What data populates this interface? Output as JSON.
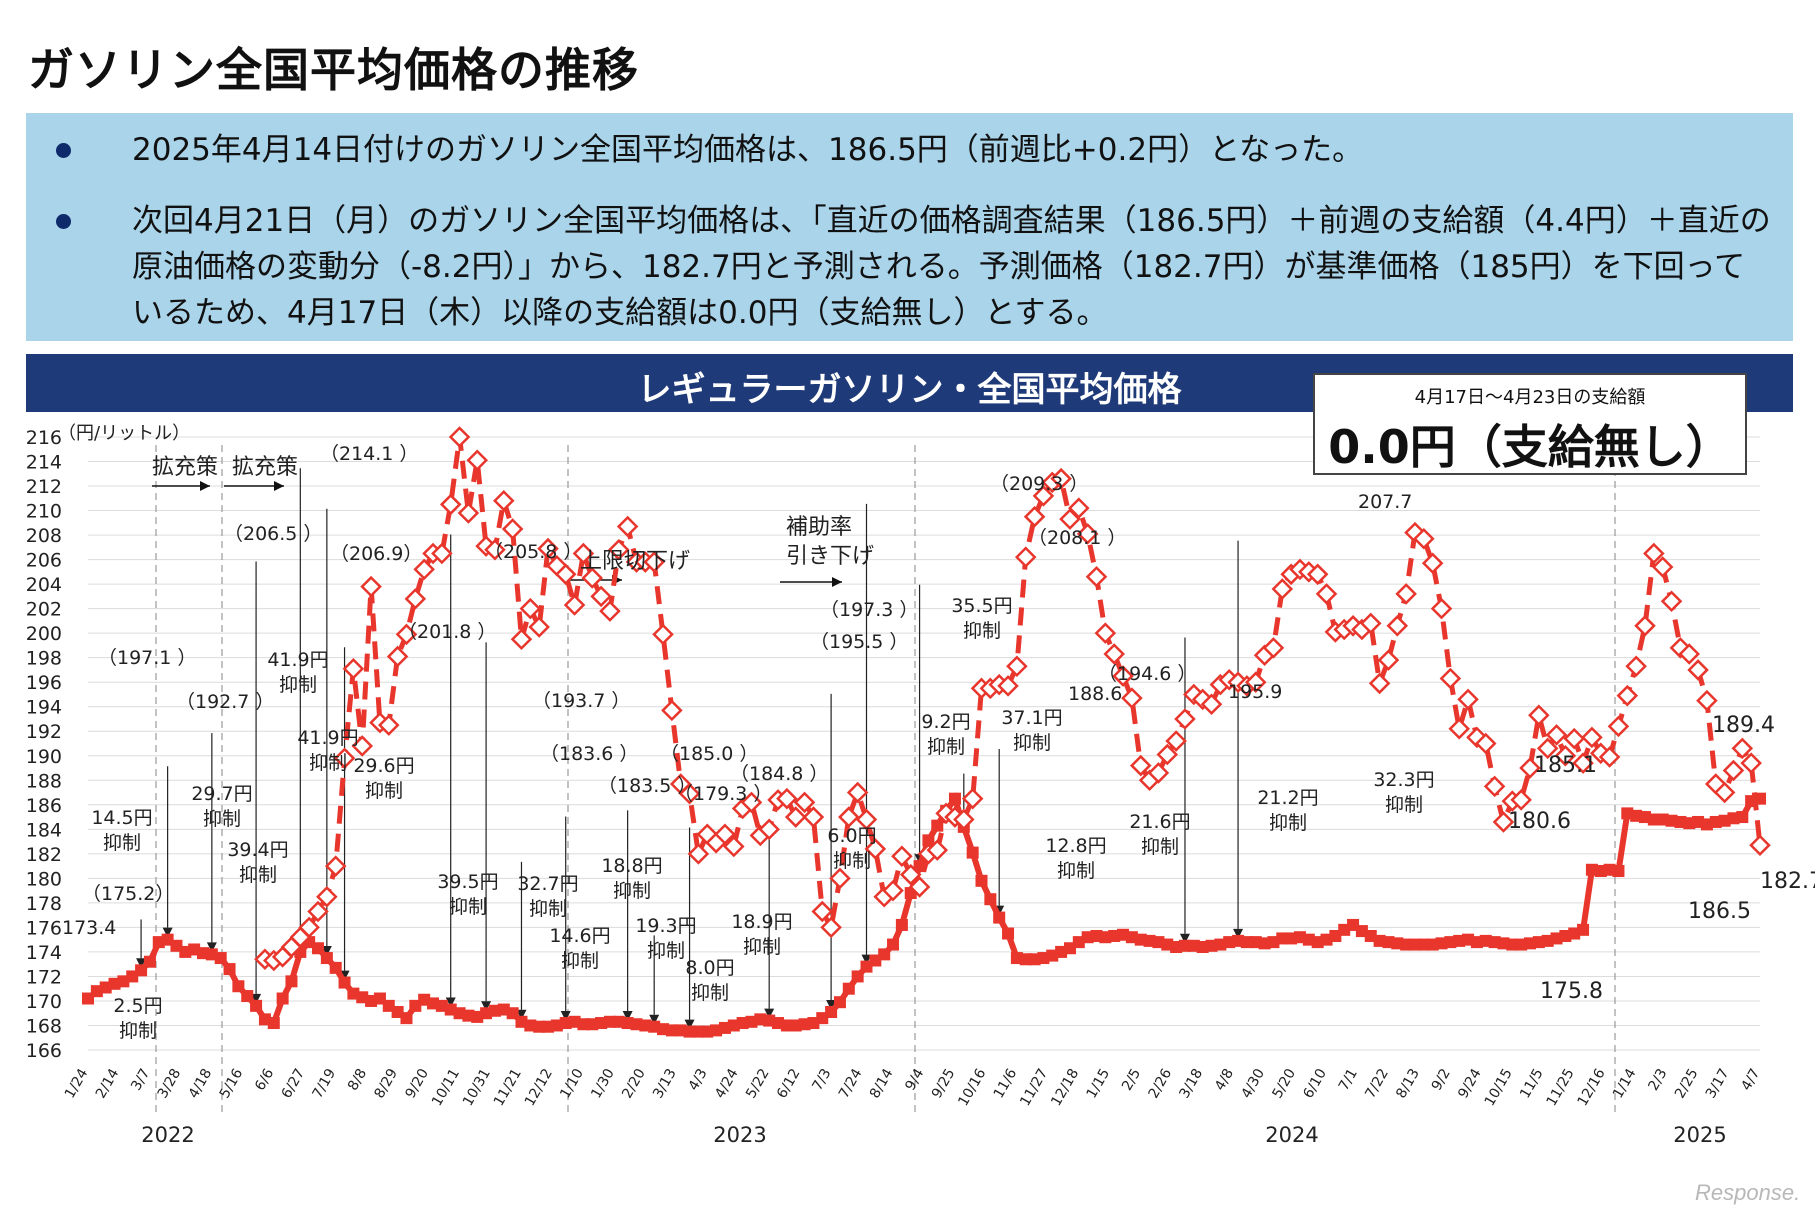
{
  "title": "ガソリン全国平均価格の推移",
  "bullets": [
    "2025年4月14日付けのガソリン全国平均価格は、186.5円（前週比+0.2円）となった。",
    "次回4月21日（月）のガソリン全国平均価格は、「直近の価格調査結果（186.5円）＋前週の支給額（4.4円）＋直近の原油価格の変動分（-8.2円）」から、182.7円と予測される。予測価格（182.7円）が基準価格（185円）を下回っているため、4月17日（木）以降の支給額は0.0円（支給無し）とする。"
  ],
  "subsidy_box": {
    "period": "4月17日～4月23日の支給額",
    "value": "0.0円（支給無し）"
  },
  "watermark": "Response.",
  "colors": {
    "banner": "#1f3a78",
    "summary_bg": "#a9d4ea",
    "series": "#e8362d",
    "bullet": "#0e2a6b"
  },
  "chart_data": {
    "type": "line",
    "title": "レギュラーガソリン・全国平均価格",
    "ylabel": "（円/リットル）",
    "ylim": [
      166,
      216
    ],
    "y_ticks": [
      166,
      168,
      170,
      172,
      174,
      176,
      178,
      180,
      182,
      184,
      186,
      188,
      190,
      192,
      194,
      196,
      198,
      200,
      202,
      204,
      206,
      208,
      210,
      212,
      214,
      216
    ],
    "grid": true,
    "x_tick_labels": [
      "1/24",
      "2/14",
      "3/7",
      "3/28",
      "4/18",
      "5/16",
      "6/6",
      "6/27",
      "7/19",
      "8/8",
      "8/29",
      "9/20",
      "10/11",
      "10/31",
      "11/21",
      "12/12",
      "1/10",
      "1/30",
      "2/20",
      "3/13",
      "4/3",
      "4/24",
      "5/22",
      "6/12",
      "7/3",
      "7/24",
      "8/14",
      "9/4",
      "9/25",
      "10/16",
      "11/6",
      "11/27",
      "12/18",
      "1/15",
      "2/5",
      "2/26",
      "3/18",
      "4/8",
      "4/30",
      "5/20",
      "6/10",
      "7/1",
      "7/22",
      "8/13",
      "9/2",
      "9/24",
      "10/15",
      "11/5",
      "11/25",
      "12/16",
      "1/14",
      "2/3",
      "2/25",
      "3/17",
      "4/7"
    ],
    "year_labels": [
      "2022",
      "2023",
      "2024",
      "2025"
    ],
    "series": [
      {
        "style": "solid",
        "values": [
          170.2,
          170.8,
          171.1,
          171.4,
          171.6,
          172.0,
          172.5,
          173.2,
          174.8,
          175.0,
          174.5,
          174.0,
          174.2,
          173.9,
          173.8,
          173.5,
          172.6,
          171.2,
          170.4,
          169.6,
          168.5,
          168.2,
          170.2,
          171.6,
          174.0,
          174.8,
          174.3,
          173.5,
          172.7,
          171.5,
          170.6,
          170.3,
          170.0,
          170.2,
          169.6,
          169.1,
          168.6,
          169.6,
          170.1,
          169.8,
          169.6,
          169.3,
          169.0,
          168.8,
          168.7,
          169.0,
          169.2,
          169.3,
          169.0,
          168.3,
          168.0,
          167.9,
          167.9,
          168.0,
          168.2,
          168.3,
          168.1,
          168.1,
          168.2,
          168.3,
          168.3,
          168.2,
          168.1,
          168.0,
          167.9,
          167.7,
          167.6,
          167.6,
          167.5,
          167.5,
          167.5,
          167.6,
          167.8,
          168.0,
          168.2,
          168.3,
          168.5,
          168.4,
          168.2,
          168.0,
          168.0,
          168.1,
          168.2,
          168.6,
          169.1,
          169.9,
          171.0,
          172.0,
          172.8,
          173.3,
          173.8,
          174.6,
          176.2,
          178.8,
          181.0,
          183.1,
          184.3,
          185.5,
          186.5,
          184.2,
          182.1,
          179.8,
          178.3,
          176.8,
          175.5,
          173.5,
          173.4,
          173.4,
          173.5,
          173.7,
          174.0,
          174.3,
          174.8,
          175.2,
          175.3,
          175.2,
          175.3,
          175.4,
          175.2,
          175.0,
          174.9,
          174.8,
          174.6,
          174.4,
          174.5,
          174.5,
          174.4,
          174.5,
          174.6,
          174.8,
          174.9,
          174.8,
          174.8,
          174.7,
          174.8,
          175.1,
          175.1,
          175.2,
          175.0,
          174.8,
          175.0,
          175.3,
          175.8,
          176.2,
          175.7,
          175.3,
          174.9,
          174.8,
          174.7,
          174.6,
          174.6,
          174.6,
          174.6,
          174.7,
          174.8,
          174.9,
          175.0,
          174.8,
          174.9,
          174.8,
          174.7,
          174.6,
          174.6,
          174.7,
          174.8,
          174.9,
          175.1,
          175.3,
          175.5,
          175.8,
          180.7,
          180.6,
          180.7,
          180.6,
          185.3,
          185.1,
          185.0,
          184.8,
          184.8,
          184.7,
          184.6,
          184.5,
          184.6,
          184.4,
          184.6,
          184.7,
          184.9,
          185.0,
          186.3,
          186.5
        ]
      },
      {
        "style": "dashed-diamond",
        "values": [
          173.4,
          173.3,
          173.6,
          174.4,
          175.2,
          176.0,
          177.3,
          178.5,
          181.0,
          189.8,
          197.1,
          190.8,
          203.8,
          192.7,
          192.5,
          198.1,
          199.9,
          202.8,
          205.2,
          206.5,
          206.5,
          210.5,
          216.0,
          209.8,
          214.1,
          207.1,
          206.8,
          210.8,
          208.5,
          199.5,
          202.0,
          200.5,
          206.9,
          205.5,
          204.8,
          202.3,
          206.5,
          204.5,
          203.0,
          201.8,
          206.8,
          208.7,
          205.8,
          205.8,
          205.8,
          199.9,
          193.7,
          187.7,
          186.9,
          182.0,
          183.6,
          182.9,
          183.6,
          182.6,
          185.7,
          186.2,
          183.5,
          184.0,
          186.4,
          186.5,
          185.0,
          186.2,
          185.0,
          177.3,
          176.0,
          180.0,
          185.0,
          187.0,
          184.8,
          182.4,
          178.5,
          179.0,
          181.8,
          180.3,
          179.3,
          182.0,
          182.3,
          185.3,
          185.0,
          184.8,
          186.5,
          195.5,
          195.5,
          195.8,
          195.7,
          197.3,
          206.2,
          209.5,
          211.2,
          212.3,
          212.6,
          209.3,
          210.2,
          208.1,
          204.6,
          200.0,
          198.3,
          196.5,
          194.7,
          189.2,
          188.0,
          188.6,
          190.1,
          191.2,
          193.0,
          195.0,
          194.6,
          194.2,
          195.8,
          196.2,
          196.0,
          195.7,
          196.0,
          198.2,
          198.8,
          203.6,
          204.8,
          205.2,
          205.0,
          204.8,
          203.2,
          200.1,
          200.3,
          200.6,
          200.3,
          200.8,
          195.9,
          197.8,
          200.6,
          203.2,
          208.2,
          207.7,
          205.7,
          202.0,
          196.3,
          192.2,
          194.6,
          191.5,
          191.0,
          187.5,
          184.6,
          186.3,
          186.4,
          189.0,
          193.3,
          190.6,
          191.7,
          190.0,
          191.4,
          189.4,
          191.5,
          190.2,
          189.9,
          192.4,
          194.9,
          197.3,
          200.6,
          206.5,
          205.4,
          202.6,
          198.8,
          198.3,
          197.0,
          194.5,
          187.7,
          187.0,
          188.8,
          190.6,
          189.4,
          182.7
        ]
      }
    ],
    "annotations": [
      {
        "text": "173.4"
      },
      {
        "text": "（175.2）"
      },
      {
        "text": "（197.1 ）"
      },
      {
        "text": "（192.7 ）"
      },
      {
        "text": "（206.5 ）"
      },
      {
        "text": "（214.1 ）"
      },
      {
        "text": "（206.9）"
      },
      {
        "text": "（201.8 ）"
      },
      {
        "text": "（205.8 ）"
      },
      {
        "text": "（193.7 ）"
      },
      {
        "text": "（183.6 ）"
      },
      {
        "text": "（183.5 ）"
      },
      {
        "text": "（185.0 ）"
      },
      {
        "text": "（179.3 ）"
      },
      {
        "text": "（184.8 ）"
      },
      {
        "text": "（197.3 ）"
      },
      {
        "text": "（195.5 ）"
      },
      {
        "text": "（209.3 ）"
      },
      {
        "text": "（208.1 ）"
      },
      {
        "text": "188.6"
      },
      {
        "text": "（194.6 ）"
      },
      {
        "text": "195.9"
      },
      {
        "text": "207.7"
      },
      {
        "text": "189.4"
      },
      {
        "text": "185.1"
      },
      {
        "text": "180.6"
      },
      {
        "text": "182.7"
      },
      {
        "text": "186.5"
      },
      {
        "text": "175.8"
      }
    ],
    "policy_labels": [
      "拡充策",
      "拡充策",
      "上限切下げ",
      "補助率",
      "引き下げ"
    ],
    "subsidy_labels": [
      {
        "amount": "2.5円",
        "suffix": "抑制"
      },
      {
        "amount": "14.5円",
        "suffix": "抑制"
      },
      {
        "amount": "29.7円",
        "suffix": "抑制"
      },
      {
        "amount": "39.4円",
        "suffix": "抑制"
      },
      {
        "amount": "41.9円",
        "suffix": "抑制"
      },
      {
        "amount": "41.9円",
        "suffix": "抑制"
      },
      {
        "amount": "29.6円",
        "suffix": "抑制"
      },
      {
        "amount": "39.5円",
        "suffix": "抑制"
      },
      {
        "amount": "32.7円",
        "suffix": "抑制"
      },
      {
        "amount": "14.6円",
        "suffix": "抑制"
      },
      {
        "amount": "18.8円",
        "suffix": "抑制"
      },
      {
        "amount": "19.3円",
        "suffix": "抑制"
      },
      {
        "amount": "8.0円",
        "suffix": "抑制"
      },
      {
        "amount": "18.9円",
        "suffix": "抑制"
      },
      {
        "amount": "6.0円",
        "suffix": "抑制"
      },
      {
        "amount": "9.2円",
        "suffix": "抑制"
      },
      {
        "amount": "35.5円",
        "suffix": "抑制"
      },
      {
        "amount": "37.1円",
        "suffix": "抑制"
      },
      {
        "amount": "12.8円",
        "suffix": "抑制"
      },
      {
        "amount": "21.6円",
        "suffix": "抑制"
      },
      {
        "amount": "21.2円",
        "suffix": "抑制"
      },
      {
        "amount": "32.3円",
        "suffix": "抑制"
      }
    ]
  }
}
